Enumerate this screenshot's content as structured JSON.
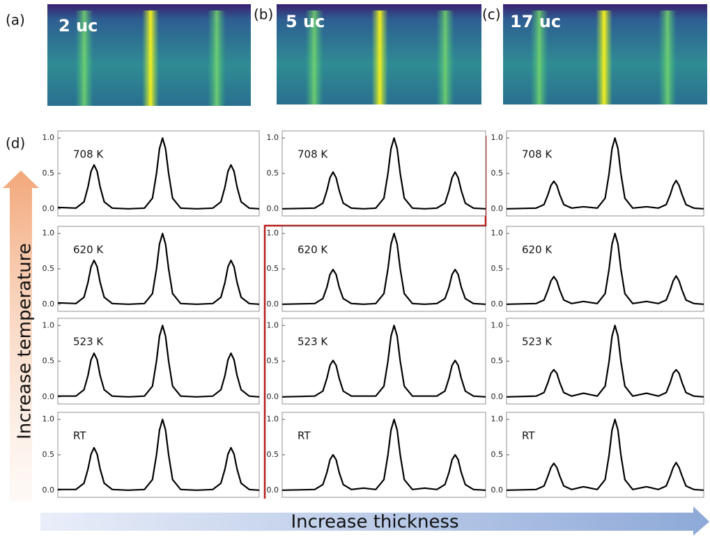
{
  "panels": {
    "a": "(a)",
    "b": "(b)",
    "c": "(c)",
    "d": "(d)"
  },
  "images": [
    {
      "label": "2 uc"
    },
    {
      "label": "5 uc"
    },
    {
      "label": "17 uc"
    }
  ],
  "arrows": {
    "vertical": "Increase  temperature",
    "horizontal": "Increase  thickness"
  },
  "chart_data": [
    {
      "type": "line",
      "annotation": "708 K",
      "color": "#000000",
      "ylim": [
        -0.1,
        1.1
      ],
      "yticks": [
        {
          "value": 0,
          "label": "0.0"
        },
        {
          "value": 0.5,
          "label": "0.5"
        },
        {
          "value": 1,
          "label": "1.0"
        }
      ],
      "x": [
        0,
        9,
        13,
        15,
        16.5,
        18,
        19.5,
        21,
        23,
        27,
        35,
        43,
        47,
        49,
        50.5,
        52,
        53.5,
        55,
        57,
        61,
        69,
        77,
        81,
        83,
        84.5,
        86,
        87.5,
        89,
        91,
        95,
        100
      ],
      "values": [
        0.02,
        0.01,
        0.1,
        0.31,
        0.53,
        0.62,
        0.53,
        0.31,
        0.1,
        0.01,
        0.0,
        0.01,
        0.15,
        0.5,
        0.85,
        1.0,
        0.85,
        0.5,
        0.15,
        0.01,
        0.0,
        0.01,
        0.1,
        0.31,
        0.53,
        0.62,
        0.53,
        0.31,
        0.1,
        0.01,
        0.0
      ]
    },
    {
      "type": "line",
      "annotation": "708 K",
      "color": "#000000",
      "ylim": [
        -0.1,
        1.1
      ],
      "yticks": [
        {
          "value": 0,
          "label": "0.0"
        },
        {
          "value": 0.5,
          "label": "0.5"
        },
        {
          "value": 1,
          "label": "1.0"
        }
      ],
      "x": [
        0,
        16,
        20,
        22,
        23.5,
        25,
        26.5,
        28,
        30,
        34,
        40,
        46,
        50,
        52,
        53.5,
        55,
        56.5,
        58,
        60,
        64,
        70,
        76,
        80,
        82,
        83.5,
        85,
        86.5,
        88,
        90,
        94,
        100
      ],
      "values": [
        0.0,
        0.01,
        0.08,
        0.26,
        0.44,
        0.52,
        0.44,
        0.26,
        0.08,
        0.01,
        0.0,
        0.01,
        0.15,
        0.5,
        0.85,
        1.0,
        0.85,
        0.5,
        0.15,
        0.01,
        0.0,
        0.01,
        0.08,
        0.26,
        0.44,
        0.52,
        0.44,
        0.26,
        0.08,
        0.01,
        0.0
      ]
    },
    {
      "type": "line",
      "annotation": "708 K",
      "color": "#000000",
      "ylim": [
        -0.1,
        1.1
      ],
      "yticks": [
        {
          "value": 0,
          "label": "0.0"
        },
        {
          "value": 0.5,
          "label": "0.5"
        },
        {
          "value": 1,
          "label": "1.0"
        }
      ],
      "x": [
        0,
        15,
        19,
        21,
        22.5,
        24,
        25.5,
        27,
        29,
        33,
        39,
        46,
        50,
        52,
        53.5,
        55,
        56.5,
        58,
        60,
        64,
        71,
        77,
        81,
        83,
        84.5,
        86,
        87.5,
        89,
        91,
        95,
        100
      ],
      "values": [
        0.0,
        0.01,
        0.06,
        0.2,
        0.33,
        0.39,
        0.33,
        0.2,
        0.06,
        0.01,
        0.03,
        0.01,
        0.15,
        0.5,
        0.85,
        1.0,
        0.85,
        0.5,
        0.15,
        0.01,
        0.03,
        0.01,
        0.06,
        0.2,
        0.33,
        0.4,
        0.33,
        0.2,
        0.06,
        0.01,
        0.0
      ]
    },
    {
      "type": "line",
      "annotation": "620 K",
      "color": "#000000",
      "ylim": [
        -0.1,
        1.1
      ],
      "yticks": [
        {
          "value": 0,
          "label": "0.0"
        },
        {
          "value": 0.5,
          "label": "0.5"
        },
        {
          "value": 1,
          "label": "1.0"
        }
      ],
      "x": [
        0,
        9,
        13,
        15,
        16.5,
        18,
        19.5,
        21,
        23,
        27,
        35,
        43,
        47,
        49,
        50.5,
        52,
        53.5,
        55,
        57,
        61,
        69,
        77,
        81,
        83,
        84.5,
        86,
        87.5,
        89,
        91,
        95,
        100
      ],
      "values": [
        0.02,
        0.01,
        0.1,
        0.31,
        0.53,
        0.62,
        0.53,
        0.31,
        0.1,
        0.01,
        0.0,
        0.01,
        0.15,
        0.5,
        0.85,
        1.0,
        0.85,
        0.5,
        0.15,
        0.01,
        0.0,
        0.01,
        0.1,
        0.31,
        0.53,
        0.62,
        0.53,
        0.31,
        0.1,
        0.01,
        0.0
      ]
    },
    {
      "type": "line",
      "annotation": "620 K",
      "color": "#000000",
      "ylim": [
        -0.1,
        1.1
      ],
      "yticks": [
        {
          "value": 0,
          "label": "0.0"
        },
        {
          "value": 0.5,
          "label": "0.5"
        },
        {
          "value": 1,
          "label": "1.0"
        }
      ],
      "x": [
        0,
        16,
        20,
        22,
        23.5,
        25,
        26.5,
        28,
        30,
        34,
        40,
        46,
        50,
        52,
        53.5,
        55,
        56.5,
        58,
        60,
        64,
        70,
        76,
        80,
        82,
        83.5,
        85,
        86.5,
        88,
        90,
        94,
        100
      ],
      "values": [
        0.0,
        0.01,
        0.08,
        0.24,
        0.42,
        0.49,
        0.42,
        0.24,
        0.08,
        0.01,
        0.0,
        0.01,
        0.15,
        0.5,
        0.85,
        1.0,
        0.85,
        0.5,
        0.15,
        0.01,
        0.0,
        0.01,
        0.08,
        0.24,
        0.42,
        0.49,
        0.42,
        0.24,
        0.08,
        0.01,
        0.0
      ]
    },
    {
      "type": "line",
      "annotation": "620 K",
      "color": "#000000",
      "ylim": [
        -0.1,
        1.1
      ],
      "yticks": [
        {
          "value": 0,
          "label": "0.0"
        },
        {
          "value": 0.5,
          "label": "0.5"
        },
        {
          "value": 1,
          "label": "1.0"
        }
      ],
      "x": [
        0,
        15,
        19,
        21,
        22.5,
        24,
        25.5,
        27,
        29,
        33,
        39,
        46,
        50,
        52,
        53.5,
        55,
        56.5,
        58,
        60,
        64,
        71,
        77,
        81,
        83,
        84.5,
        86,
        87.5,
        89,
        91,
        95,
        100
      ],
      "values": [
        0.0,
        0.01,
        0.06,
        0.2,
        0.33,
        0.39,
        0.33,
        0.2,
        0.06,
        0.01,
        0.04,
        0.01,
        0.15,
        0.5,
        0.85,
        1.0,
        0.85,
        0.5,
        0.15,
        0.01,
        0.04,
        0.01,
        0.06,
        0.2,
        0.33,
        0.4,
        0.33,
        0.2,
        0.06,
        0.01,
        0.0
      ]
    },
    {
      "type": "line",
      "annotation": "523 K",
      "color": "#000000",
      "ylim": [
        -0.1,
        1.1
      ],
      "yticks": [
        {
          "value": 0,
          "label": "0.0"
        },
        {
          "value": 0.5,
          "label": "0.5"
        },
        {
          "value": 1,
          "label": "1.0"
        }
      ],
      "x": [
        0,
        9,
        13,
        15,
        16.5,
        18,
        19.5,
        21,
        23,
        27,
        35,
        43,
        47,
        49,
        50.5,
        52,
        53.5,
        55,
        57,
        61,
        69,
        77,
        81,
        83,
        84.5,
        86,
        87.5,
        89,
        91,
        95,
        100
      ],
      "values": [
        0.01,
        0.01,
        0.1,
        0.3,
        0.52,
        0.61,
        0.52,
        0.3,
        0.1,
        0.01,
        0.0,
        0.01,
        0.15,
        0.5,
        0.85,
        1.0,
        0.85,
        0.5,
        0.15,
        0.01,
        0.0,
        0.01,
        0.1,
        0.3,
        0.52,
        0.61,
        0.52,
        0.3,
        0.1,
        0.01,
        0.0
      ]
    },
    {
      "type": "line",
      "annotation": "523 K",
      "color": "#000000",
      "ylim": [
        -0.1,
        1.1
      ],
      "yticks": [
        {
          "value": 0,
          "label": "0.0"
        },
        {
          "value": 0.5,
          "label": "0.5"
        },
        {
          "value": 1,
          "label": "1.0"
        }
      ],
      "x": [
        0,
        16,
        20,
        22,
        23.5,
        25,
        26.5,
        28,
        30,
        34,
        40,
        46,
        50,
        52,
        53.5,
        55,
        56.5,
        58,
        60,
        64,
        70,
        76,
        80,
        82,
        83.5,
        85,
        86.5,
        88,
        90,
        94,
        100
      ],
      "values": [
        0.0,
        0.01,
        0.08,
        0.26,
        0.44,
        0.51,
        0.44,
        0.26,
        0.08,
        0.01,
        0.01,
        0.01,
        0.15,
        0.5,
        0.85,
        1.0,
        0.85,
        0.5,
        0.15,
        0.01,
        0.01,
        0.01,
        0.08,
        0.26,
        0.44,
        0.51,
        0.44,
        0.26,
        0.08,
        0.01,
        0.0
      ]
    },
    {
      "type": "line",
      "annotation": "523 K",
      "color": "#000000",
      "ylim": [
        -0.1,
        1.1
      ],
      "yticks": [
        {
          "value": 0,
          "label": "0.0"
        },
        {
          "value": 0.5,
          "label": "0.5"
        },
        {
          "value": 1,
          "label": "1.0"
        }
      ],
      "x": [
        0,
        15,
        19,
        21,
        22.5,
        24,
        25.5,
        27,
        29,
        33,
        39,
        46,
        50,
        52,
        53.5,
        55,
        56.5,
        58,
        60,
        64,
        71,
        77,
        81,
        83,
        84.5,
        86,
        87.5,
        89,
        91,
        95,
        100
      ],
      "values": [
        0.0,
        0.01,
        0.06,
        0.2,
        0.33,
        0.38,
        0.33,
        0.2,
        0.06,
        0.01,
        0.05,
        0.01,
        0.15,
        0.5,
        0.85,
        1.0,
        0.85,
        0.5,
        0.15,
        0.01,
        0.05,
        0.01,
        0.06,
        0.2,
        0.33,
        0.38,
        0.33,
        0.2,
        0.06,
        0.01,
        0.0
      ]
    },
    {
      "type": "line",
      "annotation": "RT",
      "color": "#000000",
      "ylim": [
        -0.1,
        1.1
      ],
      "yticks": [
        {
          "value": 0,
          "label": "0.0"
        },
        {
          "value": 0.5,
          "label": "0.5"
        },
        {
          "value": 1,
          "label": "1.0"
        }
      ],
      "x": [
        0,
        9,
        13,
        15,
        16.5,
        18,
        19.5,
        21,
        23,
        27,
        35,
        43,
        47,
        49,
        50.5,
        52,
        53.5,
        55,
        57,
        61,
        69,
        77,
        81,
        83,
        84.5,
        86,
        87.5,
        89,
        91,
        95,
        100
      ],
      "values": [
        0.01,
        0.01,
        0.1,
        0.3,
        0.51,
        0.6,
        0.51,
        0.3,
        0.1,
        0.01,
        0.0,
        0.01,
        0.15,
        0.5,
        0.85,
        1.0,
        0.85,
        0.5,
        0.15,
        0.01,
        0.0,
        0.01,
        0.1,
        0.3,
        0.51,
        0.6,
        0.51,
        0.3,
        0.1,
        0.01,
        0.0
      ]
    },
    {
      "type": "line",
      "annotation": "RT",
      "color": "#000000",
      "ylim": [
        -0.1,
        1.1
      ],
      "yticks": [
        {
          "value": 0,
          "label": "0.0"
        },
        {
          "value": 0.5,
          "label": "0.5"
        },
        {
          "value": 1,
          "label": "1.0"
        }
      ],
      "x": [
        0,
        16,
        20,
        22,
        23.5,
        25,
        26.5,
        28,
        30,
        34,
        40,
        46,
        50,
        52,
        53.5,
        55,
        56.5,
        58,
        60,
        64,
        70,
        76,
        80,
        82,
        83.5,
        85,
        86.5,
        88,
        90,
        94,
        100
      ],
      "values": [
        0.0,
        0.01,
        0.08,
        0.25,
        0.43,
        0.5,
        0.43,
        0.25,
        0.08,
        0.01,
        0.03,
        0.01,
        0.15,
        0.5,
        0.85,
        1.0,
        0.85,
        0.5,
        0.15,
        0.01,
        0.03,
        0.01,
        0.08,
        0.25,
        0.43,
        0.5,
        0.43,
        0.25,
        0.08,
        0.01,
        0.0
      ]
    },
    {
      "type": "line",
      "annotation": "RT",
      "color": "#000000",
      "ylim": [
        -0.1,
        1.1
      ],
      "yticks": [
        {
          "value": 0,
          "label": "0.0"
        },
        {
          "value": 0.5,
          "label": "0.5"
        },
        {
          "value": 1,
          "label": "1.0"
        }
      ],
      "x": [
        0,
        15,
        19,
        21,
        22.5,
        24,
        25.5,
        27,
        29,
        33,
        39,
        46,
        50,
        52,
        53.5,
        55,
        56.5,
        58,
        60,
        64,
        71,
        77,
        81,
        83,
        84.5,
        86,
        87.5,
        89,
        91,
        95,
        100
      ],
      "values": [
        0.0,
        0.01,
        0.06,
        0.2,
        0.32,
        0.38,
        0.32,
        0.2,
        0.06,
        0.01,
        0.05,
        0.01,
        0.15,
        0.5,
        0.85,
        1.0,
        0.85,
        0.5,
        0.15,
        0.01,
        0.05,
        0.01,
        0.06,
        0.2,
        0.32,
        0.39,
        0.32,
        0.2,
        0.06,
        0.01,
        0.0
      ]
    }
  ]
}
